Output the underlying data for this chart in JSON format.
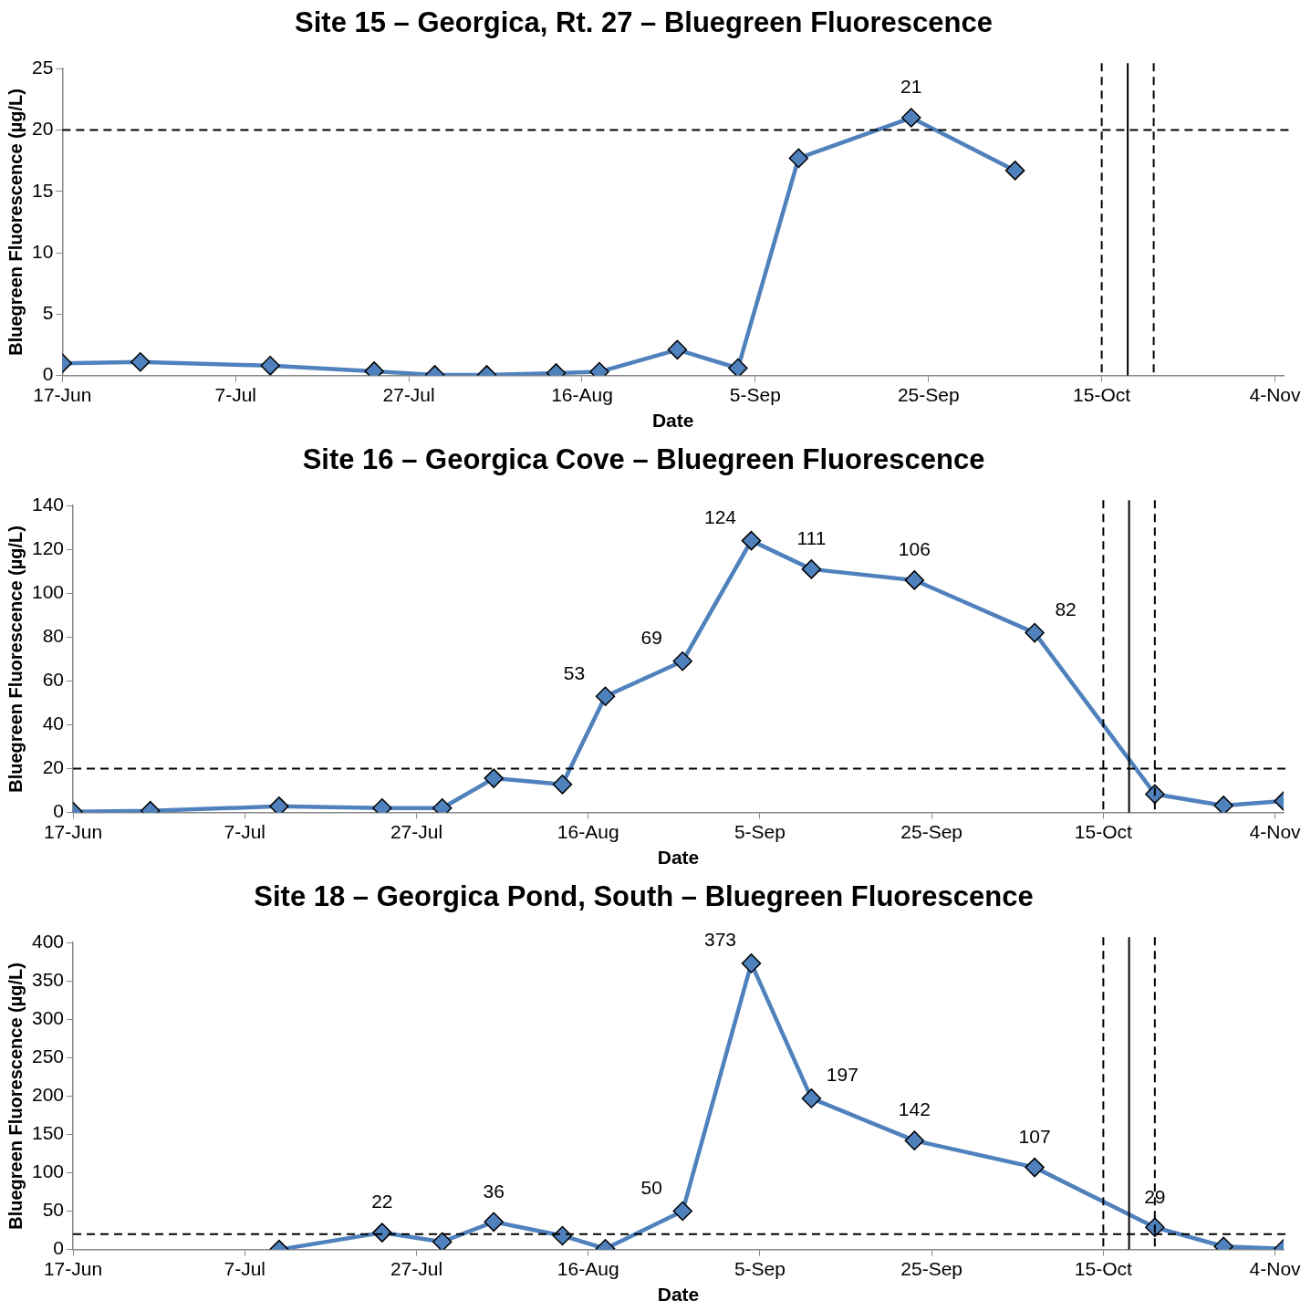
{
  "chart_data": [
    {
      "type": "line",
      "title": "Site 15 – Georgica, Rt. 27 – Bluegreen Fluorescence",
      "xlabel": "Date",
      "ylabel": "Bluegreen Fluorescence (µg/L)",
      "marker": "diamond",
      "line_style": "solid",
      "grid": false,
      "legend": false,
      "x": [
        "--06-17",
        "--06-26",
        "--07-11",
        "--07-23",
        "--07-30",
        "--08-05",
        "--08-13",
        "--08-18",
        "--08-27",
        "--09-03",
        "--09-10",
        "--09-23",
        "--10-05"
      ],
      "series": [
        {
          "color": "#4f81bd",
          "values": [
            1.0,
            1.1,
            0.8,
            0.35,
            0.05,
            0.05,
            0.2,
            0.3,
            2.1,
            0.6,
            17.7,
            21,
            16.7
          ],
          "value_labels": [
            null,
            null,
            null,
            null,
            null,
            null,
            null,
            null,
            null,
            null,
            null,
            "21",
            null
          ]
        }
      ],
      "xlim": [
        "--06-17",
        "--11-05"
      ],
      "xticks": [
        {
          "value": "--06-17",
          "label": "17-Jun"
        },
        {
          "value": "--07-07",
          "label": "7-Jul"
        },
        {
          "value": "--07-27",
          "label": "27-Jul"
        },
        {
          "value": "--08-16",
          "label": "16-Aug"
        },
        {
          "value": "--09-05",
          "label": "5-Sep"
        },
        {
          "value": "--09-25",
          "label": "25-Sep"
        },
        {
          "value": "--10-15",
          "label": "15-Oct"
        },
        {
          "value": "--11-04",
          "label": "4-Nov"
        }
      ],
      "ylim": [
        0,
        25
      ],
      "yticks": [
        0,
        5,
        10,
        15,
        20,
        25
      ],
      "ref_lines": [
        {
          "axis": "y",
          "value": 20,
          "line_style": "dashed",
          "color": "#000000"
        },
        {
          "axis": "x",
          "value": "--10-15",
          "line_style": "dashed",
          "color": "#000000"
        },
        {
          "axis": "x",
          "value": "--10-18",
          "line_style": "solid",
          "color": "#000000"
        },
        {
          "axis": "x",
          "value": "--10-21",
          "line_style": "dashed",
          "color": "#000000"
        }
      ]
    },
    {
      "type": "line",
      "title": "Site 16 – Georgica Cove – Bluegreen Fluorescence",
      "xlabel": "Date",
      "ylabel": "Bluegreen Fluorescence (µg/L)",
      "marker": "diamond",
      "line_style": "solid",
      "grid": false,
      "legend": false,
      "x": [
        "--06-17",
        "--06-26",
        "--07-11",
        "--07-23",
        "--07-30",
        "--08-05",
        "--08-13",
        "--08-18",
        "--08-27",
        "--09-04",
        "--09-11",
        "--09-23",
        "--10-07",
        "--10-21",
        "--10-29",
        "--11-05"
      ],
      "series": [
        {
          "color": "#4f81bd",
          "values": [
            0.4,
            0.8,
            2.8,
            2,
            2,
            15.6,
            12.8,
            53,
            69,
            124,
            111,
            106,
            82,
            8.4,
            3.2,
            5.2
          ],
          "value_labels": [
            null,
            null,
            null,
            null,
            null,
            null,
            null,
            "53",
            "69",
            "124",
            "111",
            "106",
            "82",
            null,
            null,
            null
          ]
        }
      ],
      "xlim": [
        "--06-17",
        "--11-05"
      ],
      "xticks": [
        {
          "value": "--06-17",
          "label": "17-Jun"
        },
        {
          "value": "--07-07",
          "label": "7-Jul"
        },
        {
          "value": "--07-27",
          "label": "27-Jul"
        },
        {
          "value": "--08-16",
          "label": "16-Aug"
        },
        {
          "value": "--09-05",
          "label": "5-Sep"
        },
        {
          "value": "--09-25",
          "label": "25-Sep"
        },
        {
          "value": "--10-15",
          "label": "15-Oct"
        },
        {
          "value": "--11-04",
          "label": "4-Nov"
        }
      ],
      "ylim": [
        0,
        140
      ],
      "yticks": [
        0,
        20,
        40,
        60,
        80,
        100,
        120,
        140
      ],
      "ref_lines": [
        {
          "axis": "y",
          "value": 20,
          "line_style": "dashed",
          "color": "#000000"
        },
        {
          "axis": "x",
          "value": "--10-15",
          "line_style": "dashed",
          "color": "#000000"
        },
        {
          "axis": "x",
          "value": "--10-18",
          "line_style": "solid",
          "color": "#000000"
        },
        {
          "axis": "x",
          "value": "--10-21",
          "line_style": "dashed",
          "color": "#000000"
        }
      ]
    },
    {
      "type": "line",
      "title": "Site 18 – Georgica Pond, South – Bluegreen Fluorescence",
      "xlabel": "Date",
      "ylabel": "Bluegreen Fluorescence (µg/L)",
      "marker": "diamond",
      "line_style": "solid",
      "grid": false,
      "legend": false,
      "x": [
        "--07-11",
        "--07-23",
        "--07-30",
        "--08-05",
        "--08-13",
        "--08-18",
        "--08-27",
        "--09-04",
        "--09-11",
        "--09-23",
        "--10-07",
        "--10-21",
        "--10-29",
        "--11-05"
      ],
      "series": [
        {
          "color": "#4f81bd",
          "values": [
            0,
            22,
            10,
            36,
            18,
            1,
            50,
            373,
            197,
            142,
            107,
            29,
            4,
            1
          ],
          "value_labels": [
            null,
            "22",
            null,
            "36",
            null,
            null,
            "50",
            "373",
            "197",
            "142",
            "107",
            "29",
            null,
            null
          ]
        }
      ],
      "xlim": [
        "--06-17",
        "--11-05"
      ],
      "xticks": [
        {
          "value": "--06-17",
          "label": "17-Jun"
        },
        {
          "value": "--07-07",
          "label": "7-Jul"
        },
        {
          "value": "--07-27",
          "label": "27-Jul"
        },
        {
          "value": "--08-16",
          "label": "16-Aug"
        },
        {
          "value": "--09-05",
          "label": "5-Sep"
        },
        {
          "value": "--09-25",
          "label": "25-Sep"
        },
        {
          "value": "--10-15",
          "label": "15-Oct"
        },
        {
          "value": "--11-04",
          "label": "4-Nov"
        }
      ],
      "ylim": [
        0,
        400
      ],
      "yticks": [
        0,
        50,
        100,
        150,
        200,
        250,
        300,
        350,
        400
      ],
      "ref_lines": [
        {
          "axis": "y",
          "value": 20,
          "line_style": "dashed",
          "color": "#000000"
        },
        {
          "axis": "x",
          "value": "--10-15",
          "line_style": "dashed",
          "color": "#000000"
        },
        {
          "axis": "x",
          "value": "--10-18",
          "line_style": "solid",
          "color": "#000000"
        },
        {
          "axis": "x",
          "value": "--10-21",
          "line_style": "dashed",
          "color": "#000000"
        }
      ]
    }
  ]
}
